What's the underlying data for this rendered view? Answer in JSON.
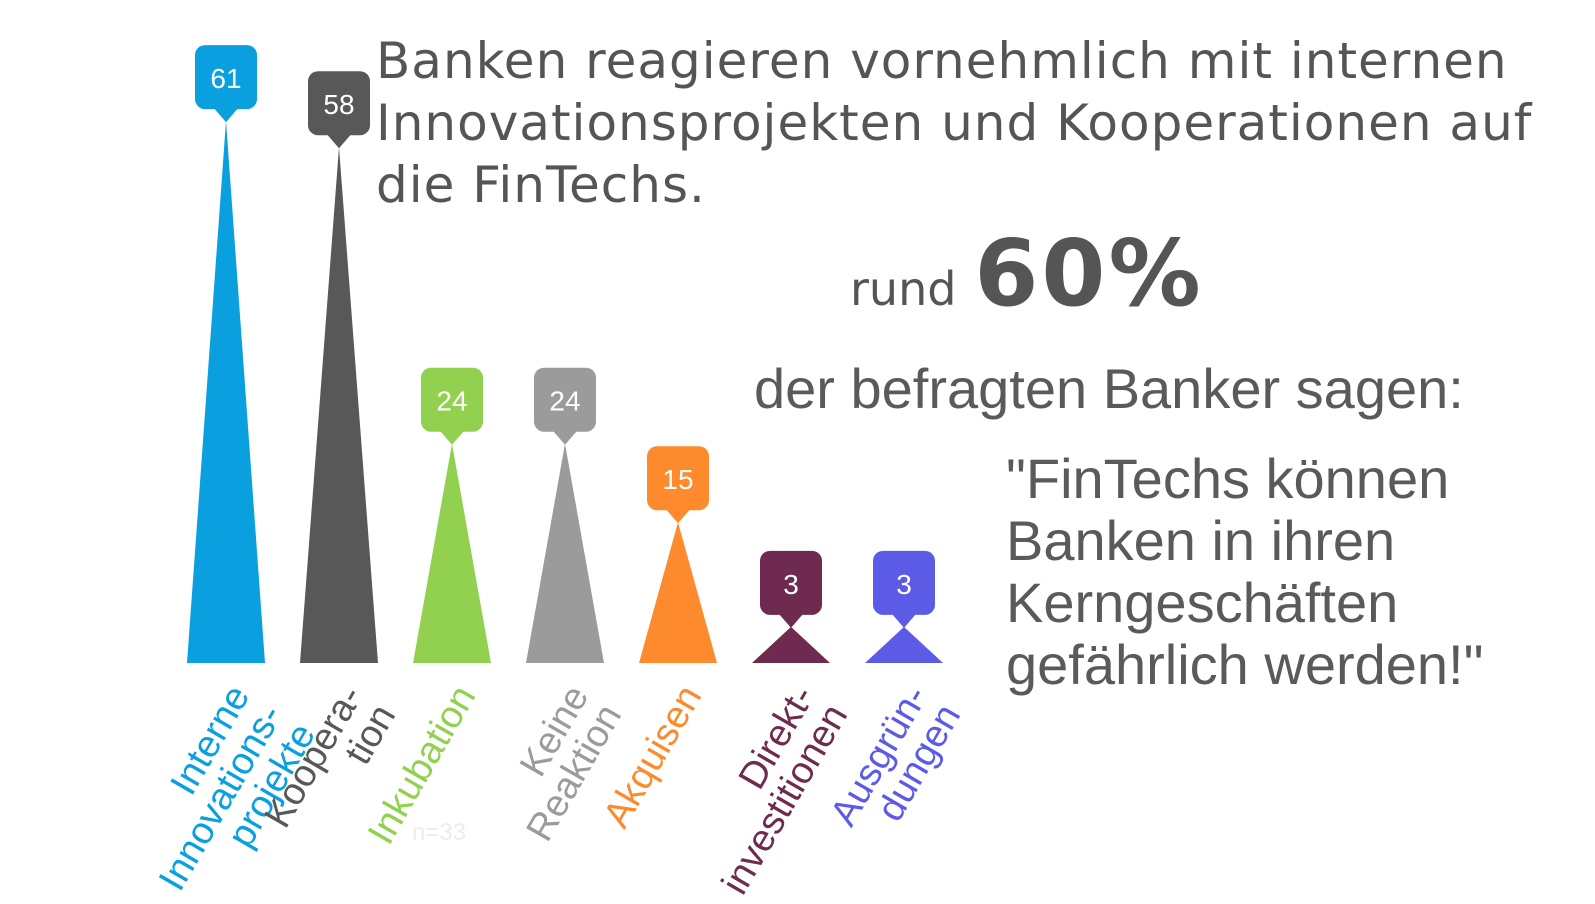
{
  "headline": "Banken reagieren vornehmlich mit internen Innovationsprojekten und Kooperationen auf die FinTechs.",
  "stat": {
    "prefix": "rund",
    "value": "60%",
    "subtitle": "der befragten Banker sagen:",
    "quote": "\"FinTechs können\nBanken in ihren\nKerngeschäften\ngefährlich werden!\""
  },
  "chart_data": {
    "type": "bar",
    "categories": [
      {
        "label_lines": [
          "Interne",
          "Innovations-",
          "projekte"
        ],
        "color": "#0aa0e0"
      },
      {
        "label_lines": [
          "Koopera-",
          "tion"
        ],
        "color": "#585858"
      },
      {
        "label_lines": [
          "Inkubation"
        ],
        "color": "#92d050"
      },
      {
        "label_lines": [
          "Keine",
          "Reaktion"
        ],
        "color": "#9b9b9b"
      },
      {
        "label_lines": [
          "Akquisen"
        ],
        "color": "#fd8a2c"
      },
      {
        "label_lines": [
          "Direkt-",
          "investitionen"
        ],
        "color": "#6e2b4f"
      },
      {
        "label_lines": [
          "Ausgrün-",
          "dungen"
        ],
        "color": "#5b5be6"
      }
    ],
    "values": [
      61,
      58,
      24,
      24,
      15,
      3,
      3
    ],
    "value_labels": [
      "61",
      "58",
      "24",
      "24",
      "15",
      "3",
      "3"
    ],
    "note": "n=33",
    "note_color": "#ececec",
    "ylim": [
      0,
      61
    ]
  }
}
